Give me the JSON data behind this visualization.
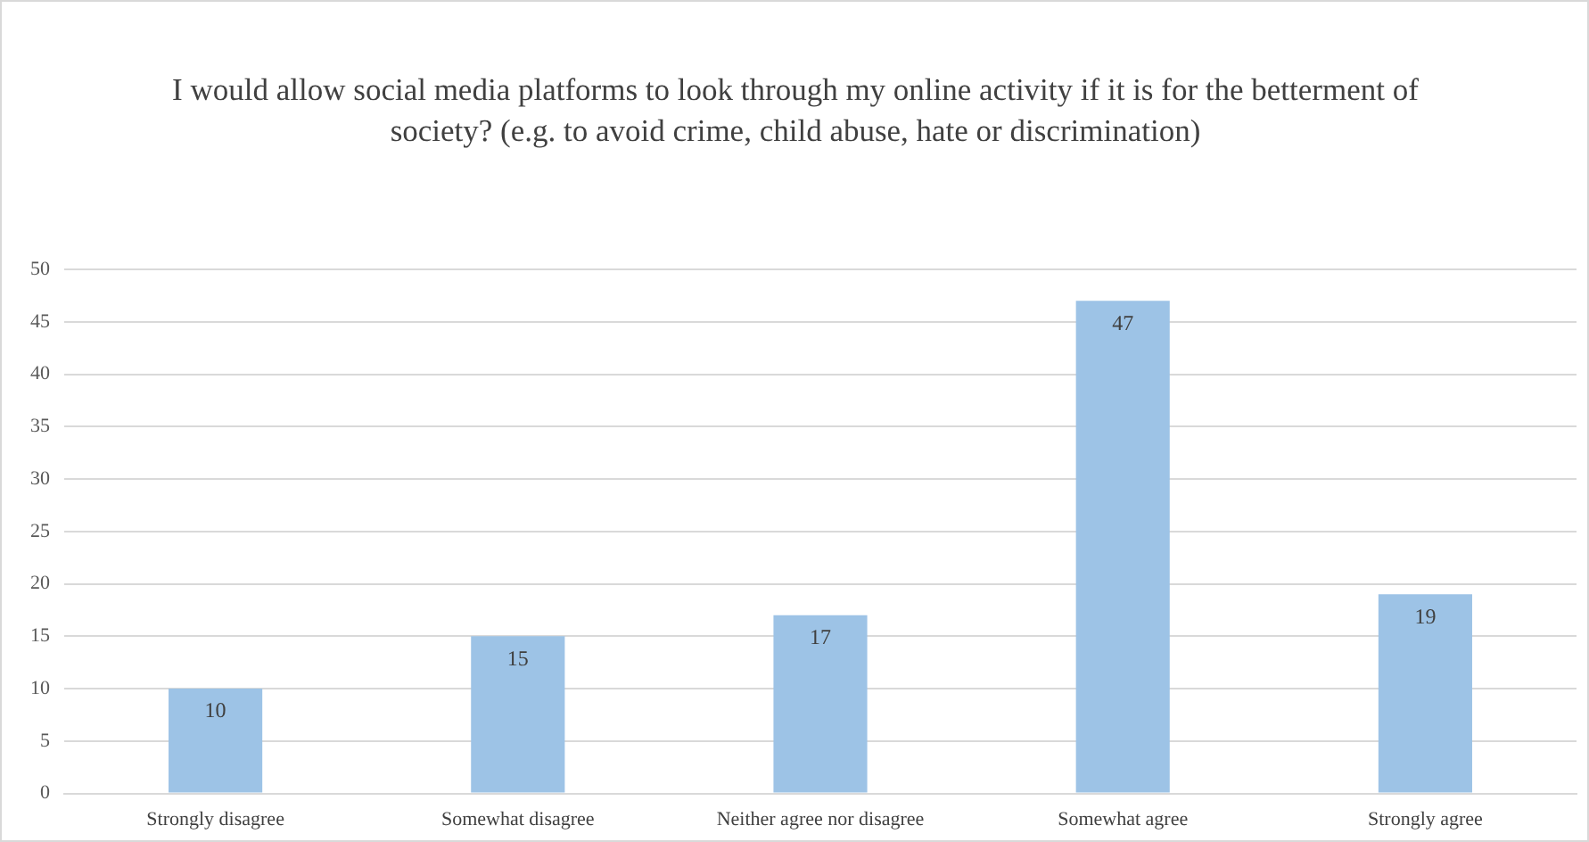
{
  "chart_data": {
    "type": "bar",
    "title": "I would allow social media platforms to look through my online activity if it is for the betterment of society? (e.g. to avoid crime, child abuse, hate or discrimination)",
    "categories": [
      "Strongly disagree",
      "Somewhat disagree",
      "Neither agree nor disagree",
      "Somewhat agree",
      "Strongly agree"
    ],
    "values": [
      10,
      15,
      17,
      47,
      19
    ],
    "color": "#9dc3e6",
    "ylim": [
      0,
      50
    ],
    "yticks": [
      0,
      5,
      10,
      15,
      20,
      25,
      30,
      35,
      40,
      45,
      50
    ],
    "grid": "y",
    "data_labels": true,
    "legend": false
  }
}
